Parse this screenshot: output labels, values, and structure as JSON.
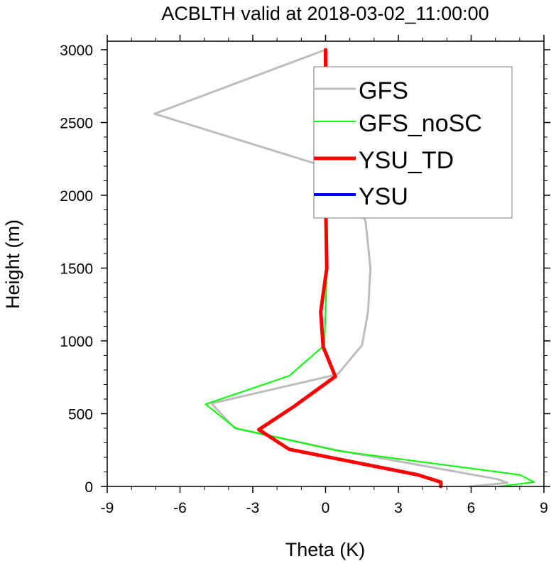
{
  "chart_data": {
    "type": "line",
    "title": "ACBLTH valid at 2018-03-02_11:00:00",
    "xlabel": "Theta (K)",
    "ylabel": "Height (m)",
    "xlim": [
      -9,
      9
    ],
    "ylim": [
      0,
      3000
    ],
    "xticks": [
      -9,
      -6,
      -3,
      0,
      3,
      6,
      9
    ],
    "yticks": [
      0,
      500,
      1000,
      1500,
      2000,
      2500,
      3000
    ],
    "xtick_labels": [
      "-9",
      "-6",
      "-3",
      "0",
      "3",
      "6",
      "9"
    ],
    "ytick_labels": [
      "0",
      "500",
      "1000",
      "1500",
      "2000",
      "2500",
      "3000"
    ],
    "grid": false,
    "legend_position": "top-right",
    "series": [
      {
        "name": "GFS",
        "color": "#bdbdbd",
        "width": 3,
        "points": [
          [
            5.95,
            0
          ],
          [
            7.5,
            25
          ],
          [
            7.1,
            50
          ],
          [
            0.6,
            245
          ],
          [
            -3.75,
            400
          ],
          [
            -4.7,
            570
          ],
          [
            0.5,
            770
          ],
          [
            1.5,
            970
          ],
          [
            1.75,
            1200
          ],
          [
            1.85,
            1500
          ],
          [
            1.65,
            1820
          ],
          [
            0.7,
            2160
          ],
          [
            -7.05,
            2560
          ],
          [
            0.0,
            3000
          ]
        ]
      },
      {
        "name": "GFS_noSC",
        "color": "#00ff00",
        "width": 2,
        "points": [
          [
            7.15,
            0
          ],
          [
            8.6,
            30
          ],
          [
            8.0,
            80
          ],
          [
            0.5,
            245
          ],
          [
            -3.7,
            400
          ],
          [
            -4.95,
            565
          ],
          [
            -1.5,
            760
          ],
          [
            -0.05,
            970
          ],
          [
            0.0,
            1200
          ],
          [
            0.05,
            1500
          ],
          [
            0.05,
            2000
          ],
          [
            0.05,
            2500
          ],
          [
            0.05,
            3000
          ]
        ]
      },
      {
        "name": "YSU_TD",
        "color": "#ff0000",
        "width": 5,
        "points": [
          [
            4.75,
            0
          ],
          [
            4.75,
            30
          ],
          [
            3.8,
            80
          ],
          [
            -1.5,
            255
          ],
          [
            -2.75,
            390
          ],
          [
            -1.3,
            550
          ],
          [
            0.4,
            755
          ],
          [
            -0.1,
            960
          ],
          [
            -0.2,
            1200
          ],
          [
            0.05,
            1500
          ],
          [
            0.0,
            2000
          ],
          [
            0.0,
            2500
          ],
          [
            0.0,
            3000
          ]
        ]
      },
      {
        "name": "YSU",
        "color": "#0000ff",
        "width": 4,
        "points": []
      }
    ]
  }
}
